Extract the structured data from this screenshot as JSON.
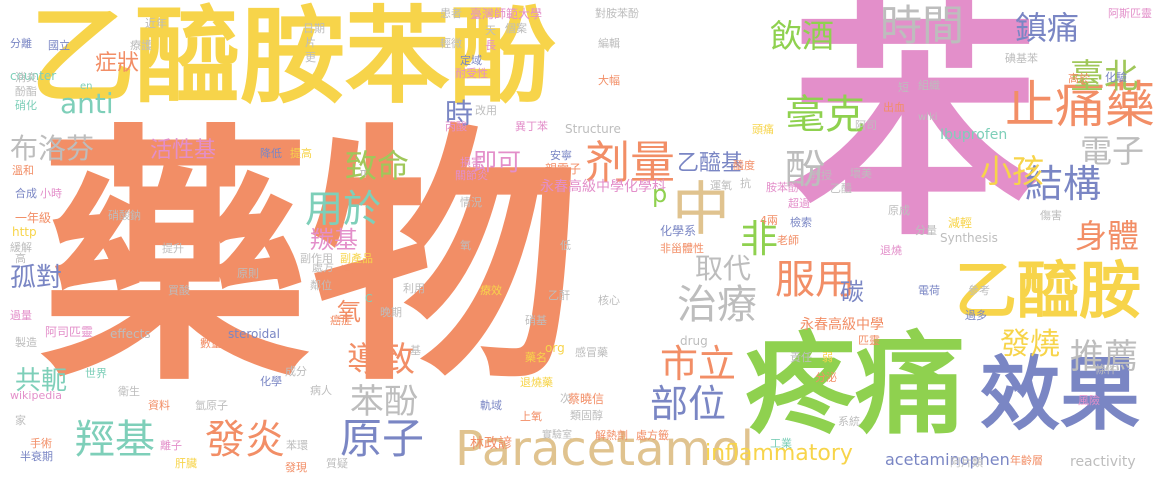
{
  "words": [
    {
      "text": "苯",
      "color": "#e38fca"
    },
    {
      "text": "藥物",
      "color": "#f28e66"
    },
    {
      "text": "乙醯胺苯酚",
      "color": "#f7d44a"
    },
    {
      "text": "疼痛",
      "color": "#8fd14f"
    },
    {
      "text": "效果",
      "color": "#7a86c4"
    },
    {
      "text": "Paracetamol",
      "color": "#e0c38f"
    },
    {
      "text": "中",
      "color": "#e0c38f"
    },
    {
      "text": "乙醯胺",
      "color": "#f7d44a"
    },
    {
      "text": "酚",
      "color": "#bdbdbd"
    },
    {
      "text": "止痛藥",
      "color": "#f28e66"
    },
    {
      "text": "剂量",
      "color": "#f28e66"
    },
    {
      "text": "布洛芬",
      "color": "#bdbdbd"
    },
    {
      "text": "anti",
      "color": "#7ecfb9"
    },
    {
      "text": "時間",
      "color": "#bdbdbd"
    },
    {
      "text": "鎮痛",
      "color": "#7a86c4"
    },
    {
      "text": "臺北",
      "color": "#a0c75a"
    },
    {
      "text": "飲酒",
      "color": "#8fd14f"
    },
    {
      "text": "症狀",
      "color": "#f28e66"
    },
    {
      "text": "時",
      "color": "#7a86c4"
    },
    {
      "text": "毫克",
      "color": "#8fd14f"
    },
    {
      "text": "結構",
      "color": "#7a86c4"
    },
    {
      "text": "電子",
      "color": "#bdbdbd"
    },
    {
      "text": "小孩",
      "color": "#f7d44a"
    },
    {
      "text": "身體",
      "color": "#f28e66"
    },
    {
      "text": "致命",
      "color": "#a0c75a"
    },
    {
      "text": "即可",
      "color": "#e38fca"
    },
    {
      "text": "活性基",
      "color": "#e38fca"
    },
    {
      "text": "乙醯基",
      "color": "#7a86c4"
    },
    {
      "text": "用於",
      "color": "#7ecfb9"
    },
    {
      "text": "非",
      "color": "#8fd14f"
    },
    {
      "text": "羰基",
      "color": "#e38fca"
    },
    {
      "text": "孤對",
      "color": "#7a86c4"
    },
    {
      "text": "服用",
      "color": "#f28e66"
    },
    {
      "text": "治療",
      "color": "#bdbdbd"
    },
    {
      "text": "取代",
      "color": "#bdbdbd"
    },
    {
      "text": "碳",
      "color": "#7a86c4"
    },
    {
      "text": "氧",
      "color": "#f28e66"
    },
    {
      "text": "導致",
      "color": "#f28e66"
    },
    {
      "text": "苯酚",
      "color": "#bdbdbd"
    },
    {
      "text": "原子",
      "color": "#7a86c4"
    },
    {
      "text": "推薦",
      "color": "#bdbdbd"
    },
    {
      "text": "發燒",
      "color": "#f7d44a"
    },
    {
      "text": "市立",
      "color": "#f28e66"
    },
    {
      "text": "部位",
      "color": "#7a86c4"
    },
    {
      "text": "共軛",
      "color": "#7ecfb9"
    },
    {
      "text": "羥基",
      "color": "#7ecfb9"
    },
    {
      "text": "發炎",
      "color": "#f28e66"
    },
    {
      "text": "inflammatory",
      "color": "#f7d44a"
    },
    {
      "text": "acetaminophen",
      "color": "#7a86c4"
    },
    {
      "text": "林政諺",
      "color": "#f28e66"
    },
    {
      "text": "Ibuprofen",
      "color": "#7ecfb9"
    },
    {
      "text": "reactivity",
      "color": "#bdbdbd"
    },
    {
      "text": "永春高級中學",
      "color": "#f28e66"
    },
    {
      "text": "永春高級中學化學科",
      "color": "#e38fca"
    },
    {
      "text": "Structure",
      "color": "#bdbdbd"
    },
    {
      "text": "Synthesis",
      "color": "#bdbdbd"
    },
    {
      "text": "steroidal",
      "color": "#7a86c4"
    },
    {
      "text": "effects",
      "color": "#bdbdbd"
    },
    {
      "text": "drug",
      "color": "#bdbdbd"
    },
    {
      "text": "org",
      "color": "#f7d44a"
    },
    {
      "text": "wikipedia",
      "color": "#e38fca"
    },
    {
      "text": "counter",
      "color": "#7ecfb9"
    },
    {
      "text": "http",
      "color": "#f7d44a"
    },
    {
      "text": "wiki",
      "color": "#bdbdbd"
    },
    {
      "text": "en",
      "color": "#7ecfb9"
    },
    {
      "text": "p",
      "color": "#8fd14f"
    },
    {
      "text": "π",
      "color": "#bdbdbd"
    },
    {
      "text": "C",
      "color": "#7ecfb9"
    },
    {
      "text": "臺灣師範大學",
      "color": "#e38fca"
    },
    {
      "text": "阿司匹靈",
      "color": "#e38fca"
    },
    {
      "text": "阿斯匹靈",
      "color": "#e38fca"
    },
    {
      "text": "一年級",
      "color": "#f28e66"
    },
    {
      "text": "硝酸鈉",
      "color": "#bdbdbd"
    },
    {
      "text": "化學系",
      "color": "#7a86c4"
    },
    {
      "text": "親電子",
      "color": "#f28e66"
    },
    {
      "text": "關節炎",
      "color": "#e38fca"
    },
    {
      "text": "安寧",
      "color": "#7a86c4"
    },
    {
      "text": "損害",
      "color": "#e38fca"
    },
    {
      "text": "原則",
      "color": "#bdbdbd"
    },
    {
      "text": "丙酸",
      "color": "#e38fca"
    },
    {
      "text": "異丁苯",
      "color": "#e38fca"
    },
    {
      "text": "蔡曉信",
      "color": "#f28e66"
    },
    {
      "text": "類固醇",
      "color": "#bdbdbd"
    },
    {
      "text": "感冒藥",
      "color": "#bdbdbd"
    },
    {
      "text": "退燒藥",
      "color": "#f7d44a"
    },
    {
      "text": "解熱劑",
      "color": "#f28e66"
    },
    {
      "text": "處方籤",
      "color": "#f28e66"
    },
    {
      "text": "實驗室",
      "color": "#bdbdbd"
    },
    {
      "text": "藥名",
      "color": "#f7d44a"
    },
    {
      "text": "副作用",
      "color": "#bdbdbd"
    },
    {
      "text": "世界",
      "color": "#7ecfb9"
    },
    {
      "text": "衛生",
      "color": "#bdbdbd"
    },
    {
      "text": "資料",
      "color": "#f28e66"
    },
    {
      "text": "手術",
      "color": "#f28e66"
    },
    {
      "text": "半衰期",
      "color": "#7a86c4"
    },
    {
      "text": "肝臟",
      "color": "#f7d44a"
    },
    {
      "text": "離子",
      "color": "#e38fca"
    },
    {
      "text": "氫原子",
      "color": "#bdbdbd"
    },
    {
      "text": "苯環",
      "color": "#bdbdbd"
    },
    {
      "text": "發現",
      "color": "#f28e66"
    },
    {
      "text": "質疑",
      "color": "#bdbdbd"
    },
    {
      "text": "上氧",
      "color": "#f28e66"
    },
    {
      "text": "次",
      "color": "#bdbdbd"
    },
    {
      "text": "軌域",
      "color": "#7a86c4"
    },
    {
      "text": "核心",
      "color": "#bdbdbd"
    },
    {
      "text": "乙酐",
      "color": "#bdbdbd"
    },
    {
      "text": "責任",
      "color": "#bdbdbd"
    },
    {
      "text": "匹靈",
      "color": "#f28e66"
    },
    {
      "text": "老師",
      "color": "#f28e66"
    },
    {
      "text": "檢索",
      "color": "#7a86c4"
    },
    {
      "text": "減輕",
      "color": "#f7d44a"
    },
    {
      "text": "分量",
      "color": "#bdbdbd"
    },
    {
      "text": "退燒",
      "color": "#e38fca"
    },
    {
      "text": "電荷",
      "color": "#7a86c4"
    },
    {
      "text": "參考",
      "color": "#bdbdbd"
    },
    {
      "text": "過多",
      "color": "#7a86c4"
    },
    {
      "text": "風險",
      "color": "#e38fca"
    },
    {
      "text": "條件",
      "color": "#bdbdbd"
    },
    {
      "text": "年齡層",
      "color": "#f28e66"
    },
    {
      "text": "阿片類",
      "color": "#bdbdbd"
    },
    {
      "text": "工業",
      "color": "#7ecfb9"
    },
    {
      "text": "系統",
      "color": "#bdbdbd"
    },
    {
      "text": "分泌",
      "color": "#f28e66"
    },
    {
      "text": "弱",
      "color": "#f7d44a"
    },
    {
      "text": "傷害",
      "color": "#bdbdbd"
    },
    {
      "text": "原成",
      "color": "#bdbdbd"
    },
    {
      "text": "化驗",
      "color": "#7a86c4"
    },
    {
      "text": "高於",
      "color": "#f28e66"
    },
    {
      "text": "碘基苯",
      "color": "#bdbdbd"
    },
    {
      "text": "組織",
      "color": "#bdbdbd"
    },
    {
      "text": "短",
      "color": "#bdbdbd"
    },
    {
      "text": "出血",
      "color": "#f28e66"
    },
    {
      "text": "阿司",
      "color": "#bdbdbd"
    },
    {
      "text": "頭痛",
      "color": "#f7d44a"
    },
    {
      "text": "運氧",
      "color": "#bdbdbd"
    },
    {
      "text": "抗",
      "color": "#bdbdbd"
    },
    {
      "text": "胺苯酚",
      "color": "#e38fca"
    },
    {
      "text": "乙醯",
      "color": "#bdbdbd"
    },
    {
      "text": "超過",
      "color": "#e38fca"
    },
    {
      "text": "教授",
      "color": "#bdbdbd"
    },
    {
      "text": "壞美",
      "color": "#bdbdbd"
    },
    {
      "text": "醯度",
      "color": "#f28e66"
    },
    {
      "text": "4兩",
      "color": "#f28e66"
    },
    {
      "text": "非甾體性",
      "color": "#f28e66"
    },
    {
      "text": "低",
      "color": "#bdbdbd"
    },
    {
      "text": "氧",
      "color": "#bdbdbd"
    },
    {
      "text": "療效",
      "color": "#f7d44a"
    },
    {
      "text": "硝基",
      "color": "#bdbdbd"
    },
    {
      "text": "晚期",
      "color": "#bdbdbd"
    },
    {
      "text": "利用",
      "color": "#bdbdbd"
    },
    {
      "text": "增加",
      "color": "#f28e66"
    },
    {
      "text": "處方",
      "color": "#bdbdbd"
    },
    {
      "text": "副產品",
      "color": "#f7d44a"
    },
    {
      "text": "情況",
      "color": "#bdbdbd"
    },
    {
      "text": "提升",
      "color": "#bdbdbd"
    },
    {
      "text": "買酸",
      "color": "#bdbdbd"
    },
    {
      "text": "鄰位",
      "color": "#bdbdbd"
    },
    {
      "text": "癌症",
      "color": "#f28e66"
    },
    {
      "text": "數量",
      "color": "#f28e66"
    },
    {
      "text": "成分",
      "color": "#bdbdbd"
    },
    {
      "text": "化學",
      "color": "#7a86c4"
    },
    {
      "text": "病人",
      "color": "#bdbdbd"
    },
    {
      "text": "基",
      "color": "#bdbdbd"
    },
    {
      "text": "小時",
      "color": "#e38fca"
    },
    {
      "text": "合成",
      "color": "#7a86c4"
    },
    {
      "text": "溫和",
      "color": "#f28e66"
    },
    {
      "text": "降低",
      "color": "#7a86c4"
    },
    {
      "text": "提高",
      "color": "#f7d44a"
    },
    {
      "text": "高",
      "color": "#bdbdbd"
    },
    {
      "text": "緩解",
      "color": "#bdbdbd"
    },
    {
      "text": "過量",
      "color": "#e38fca"
    },
    {
      "text": "製造",
      "color": "#bdbdbd"
    },
    {
      "text": "家",
      "color": "#bdbdbd"
    },
    {
      "text": "消炎",
      "color": "#bdbdbd"
    },
    {
      "text": "酚酯",
      "color": "#bdbdbd"
    },
    {
      "text": "硝化",
      "color": "#7ecfb9"
    },
    {
      "text": "分離",
      "color": "#7a86c4"
    },
    {
      "text": "國立",
      "color": "#7a86c4"
    },
    {
      "text": "近年",
      "color": "#bdbdbd"
    },
    {
      "text": "療護",
      "color": "#bdbdbd"
    },
    {
      "text": "日期",
      "color": "#bdbdbd"
    },
    {
      "text": "更",
      "color": "#bdbdbd"
    },
    {
      "text": "片",
      "color": "#bdbdbd"
    },
    {
      "text": "輕微",
      "color": "#bdbdbd"
    },
    {
      "text": "定域",
      "color": "#7a86c4"
    },
    {
      "text": "耐受性",
      "color": "#e38fca"
    },
    {
      "text": "改用",
      "color": "#bdbdbd"
    },
    {
      "text": "長",
      "color": "#e38fca"
    },
    {
      "text": "天",
      "color": "#bdbdbd"
    },
    {
      "text": "個案",
      "color": "#bdbdbd"
    },
    {
      "text": "患者",
      "color": "#bdbdbd"
    },
    {
      "text": "編輯",
      "color": "#bdbdbd"
    },
    {
      "text": "大幅",
      "color": "#f28e66"
    },
    {
      "text": "對胺苯酚",
      "color": "#bdbdbd"
    }
  ]
}
